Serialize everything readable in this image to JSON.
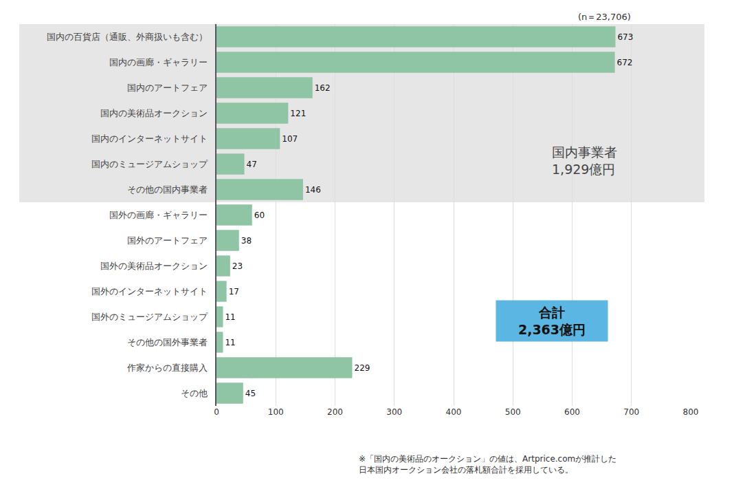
{
  "chart_data": {
    "type": "bar",
    "orientation": "horizontal",
    "subtitle": "(n＝23,706)",
    "categories": [
      "国内の百貨店（通販、外商扱いも含む）",
      "国内の画廊・ギャラリー",
      "国内のアートフェア",
      "国内の美術品オークション",
      "国内のインターネットサイト",
      "国内のミュージアムショップ",
      "その他の国内事業者",
      "国外の画廊・ギャラリー",
      "国外のアートフェア",
      "国外の美術品オークション",
      "国外のインターネットサイト",
      "国外のミュージアムショップ",
      "その他の国外事業者",
      "作家からの直接購入",
      "その他"
    ],
    "values": [
      673,
      672,
      162,
      121,
      107,
      47,
      146,
      60,
      38,
      23,
      17,
      11,
      11,
      229,
      45
    ],
    "color": "#8fc5a4",
    "xlim": [
      0,
      800
    ],
    "xticks": [
      0,
      100,
      200,
      300,
      400,
      500,
      600,
      700,
      800
    ],
    "grid": true,
    "data_labels": true,
    "annotations": [
      "国内事業者\n1,929億円",
      "合計\n2,363億円"
    ],
    "note": "※「国内の美術品のオークション」の値は、Artprice.comが推計した\n日本国内オークション会社の落札額合計を採用している。"
  }
}
